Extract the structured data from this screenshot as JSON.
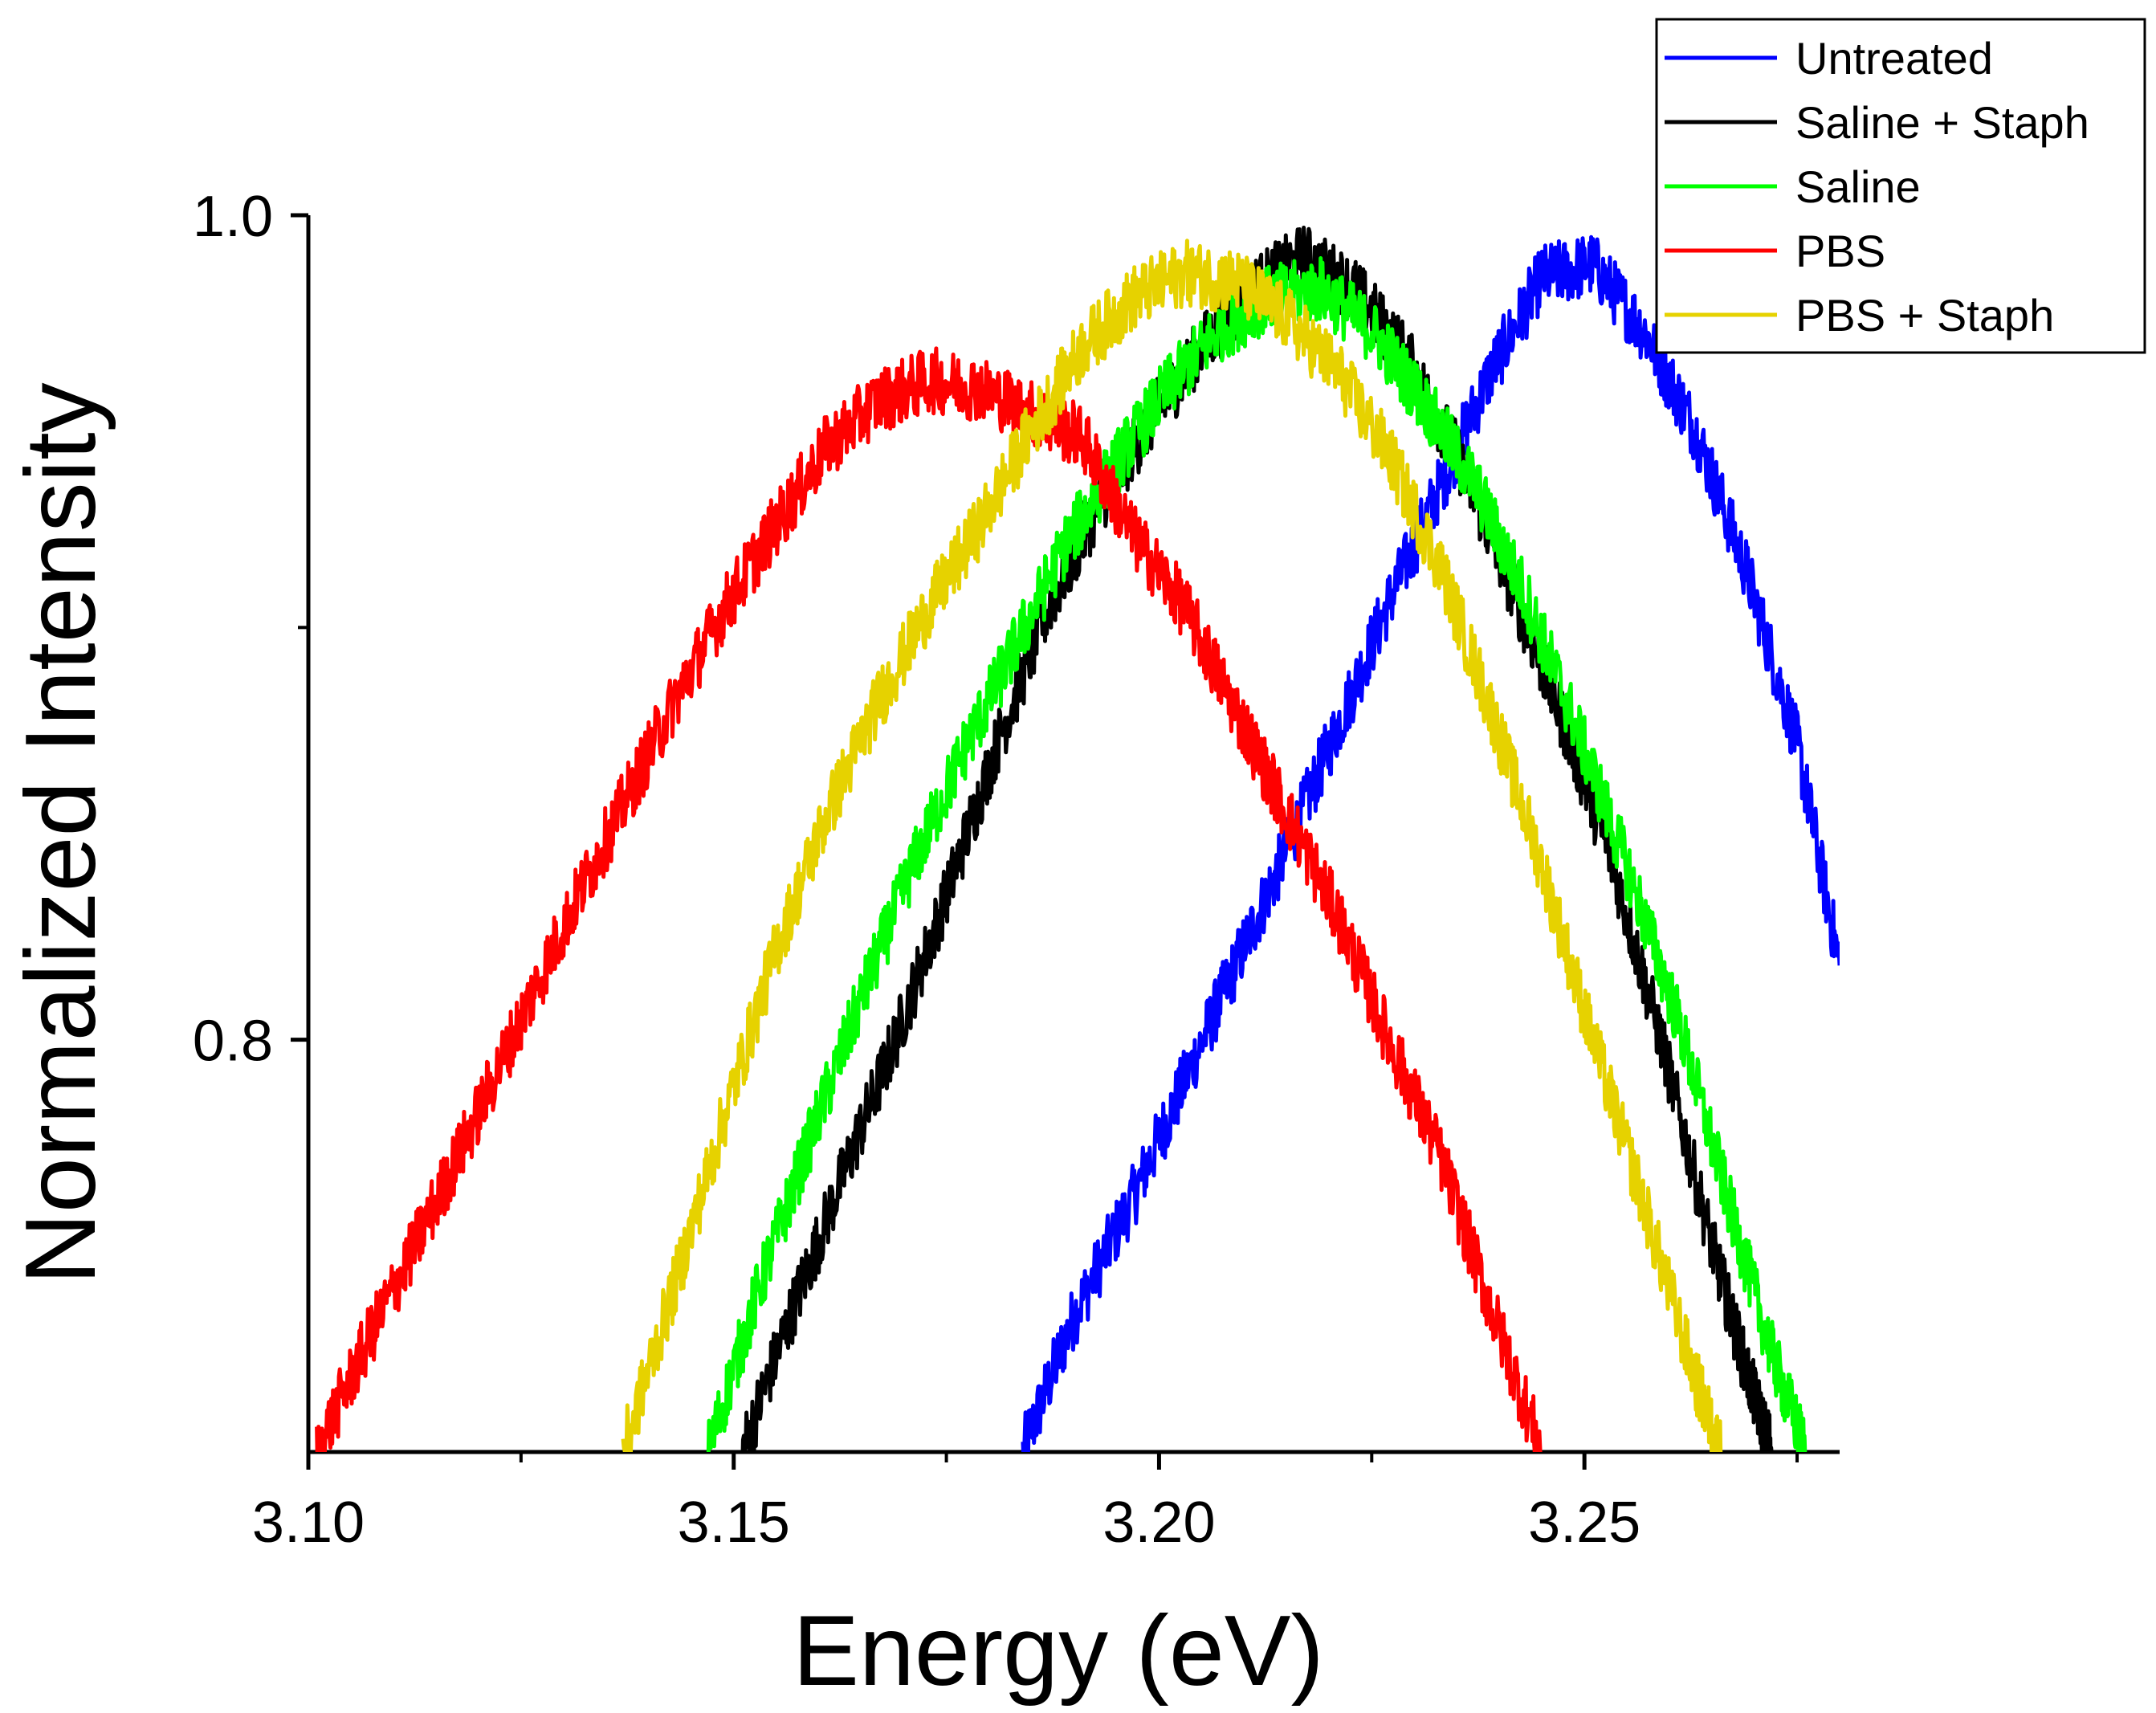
{
  "colors": {
    "untreated": "#0000ff",
    "saline_staph": "#000000",
    "saline": "#00ff00",
    "pbs": "#ff0000",
    "pbs_staph": "#e6d200"
  },
  "chart_data": {
    "type": "line",
    "title": "",
    "xlabel": "Energy (eV)",
    "ylabel": "Normalized Intensity",
    "xlim": [
      3.1,
      3.28
    ],
    "ylim": [
      0.7,
      1.0
    ],
    "x_ticks": [
      3.1,
      3.15,
      3.2,
      3.25
    ],
    "x_tick_labels": [
      "3.10",
      "3.15",
      "3.20",
      "3.25"
    ],
    "x_minor_step": 0.025,
    "y_ticks": [
      0.8,
      1.0
    ],
    "y_tick_labels": [
      "0.8",
      "1.0"
    ],
    "y_minor_ticks": [
      0.9
    ],
    "grid": false,
    "legend_position": "top-right",
    "noise_amplitude": 0.008,
    "series": [
      {
        "name": "Untreated",
        "color_key": "untreated",
        "x": [
          3.184,
          3.19,
          3.197,
          3.203,
          3.209,
          3.215,
          3.221,
          3.227,
          3.233,
          3.239,
          3.245,
          3.251,
          3.257,
          3.263,
          3.269,
          3.275,
          3.28
        ],
        "y": [
          0.7,
          0.733,
          0.762,
          0.79,
          0.818,
          0.846,
          0.876,
          0.906,
          0.934,
          0.962,
          0.985,
          0.988,
          0.972,
          0.948,
          0.914,
          0.872,
          0.818
        ]
      },
      {
        "name": "Saline + Staph",
        "color_key": "saline_staph",
        "x": [
          3.151,
          3.157,
          3.163,
          3.169,
          3.175,
          3.181,
          3.187,
          3.193,
          3.199,
          3.205,
          3.211,
          3.217,
          3.223,
          3.229,
          3.235,
          3.241,
          3.247,
          3.253,
          3.259,
          3.265,
          3.269,
          3.272
        ],
        "y": [
          0.7,
          0.735,
          0.768,
          0.8,
          0.835,
          0.872,
          0.905,
          0.93,
          0.95,
          0.968,
          0.982,
          0.99,
          0.982,
          0.966,
          0.942,
          0.912,
          0.88,
          0.845,
          0.8,
          0.75,
          0.72,
          0.7
        ]
      },
      {
        "name": "Saline",
        "color_key": "saline",
        "x": [
          3.147,
          3.153,
          3.159,
          3.165,
          3.171,
          3.177,
          3.183,
          3.189,
          3.195,
          3.201,
          3.207,
          3.213,
          3.219,
          3.225,
          3.231,
          3.237,
          3.243,
          3.249,
          3.255,
          3.261,
          3.267,
          3.272,
          3.276
        ],
        "y": [
          0.7,
          0.74,
          0.776,
          0.81,
          0.842,
          0.87,
          0.895,
          0.92,
          0.94,
          0.958,
          0.972,
          0.98,
          0.982,
          0.972,
          0.955,
          0.935,
          0.908,
          0.876,
          0.842,
          0.805,
          0.76,
          0.724,
          0.7
        ]
      },
      {
        "name": "PBS",
        "color_key": "pbs",
        "x": [
          3.101,
          3.107,
          3.113,
          3.119,
          3.125,
          3.131,
          3.137,
          3.143,
          3.149,
          3.155,
          3.161,
          3.167,
          3.173,
          3.179,
          3.185,
          3.191,
          3.197,
          3.203,
          3.209,
          3.215,
          3.221,
          3.227,
          3.233,
          3.239,
          3.245
        ],
        "y": [
          0.7,
          0.727,
          0.752,
          0.778,
          0.805,
          0.832,
          0.857,
          0.882,
          0.905,
          0.925,
          0.944,
          0.955,
          0.96,
          0.958,
          0.952,
          0.946,
          0.922,
          0.905,
          0.88,
          0.855,
          0.83,
          0.8,
          0.772,
          0.735,
          0.7
        ]
      },
      {
        "name": "PBS + Staph",
        "color_key": "pbs_staph",
        "x": [
          3.137,
          3.143,
          3.149,
          3.155,
          3.161,
          3.167,
          3.173,
          3.179,
          3.185,
          3.191,
          3.197,
          3.203,
          3.209,
          3.215,
          3.221,
          3.227,
          3.233,
          3.239,
          3.245,
          3.251,
          3.257,
          3.263,
          3.266
        ],
        "y": [
          0.7,
          0.74,
          0.782,
          0.822,
          0.855,
          0.882,
          0.905,
          0.925,
          0.948,
          0.968,
          0.98,
          0.986,
          0.984,
          0.975,
          0.962,
          0.942,
          0.915,
          0.88,
          0.842,
          0.8,
          0.76,
          0.718,
          0.7
        ]
      }
    ]
  }
}
